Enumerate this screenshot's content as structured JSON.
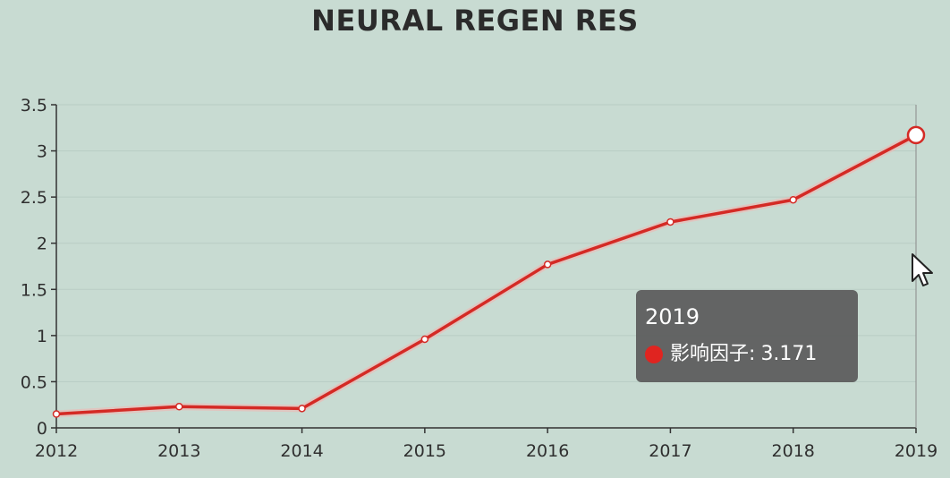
{
  "chart_data": {
    "type": "line",
    "title": "NEURAL REGEN RES",
    "x": [
      "2012",
      "2013",
      "2014",
      "2015",
      "2016",
      "2017",
      "2018",
      "2019"
    ],
    "series": [
      {
        "name": "影响因子",
        "values": [
          0.15,
          0.23,
          0.21,
          0.96,
          1.77,
          2.23,
          2.47,
          3.171
        ]
      }
    ],
    "ylim": [
      0,
      3.5
    ],
    "yticks": [
      "0",
      "0.5",
      "1",
      "1.5",
      "2",
      "2.5",
      "3",
      "3.5"
    ],
    "grid": true,
    "line_color": "#d42a25",
    "highlighted_index": 7
  },
  "tooltip": {
    "title": "2019",
    "series_name": "影响因子",
    "separator": ":",
    "value": "3.171",
    "marker_color": "#e02420"
  },
  "cursor": {
    "icon": "arrow-pointer-icon"
  }
}
